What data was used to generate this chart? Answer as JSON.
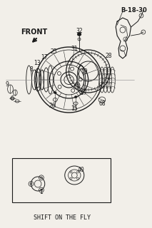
{
  "bg_color": "#f2efe9",
  "line_color": "#1a1a1a",
  "title_ref": "B-18-30",
  "front_label": "FRONT",
  "bottom_label": "SHIFT ON THE FLY",
  "fig_width": 2.13,
  "fig_height": 3.2,
  "dpi": 100
}
